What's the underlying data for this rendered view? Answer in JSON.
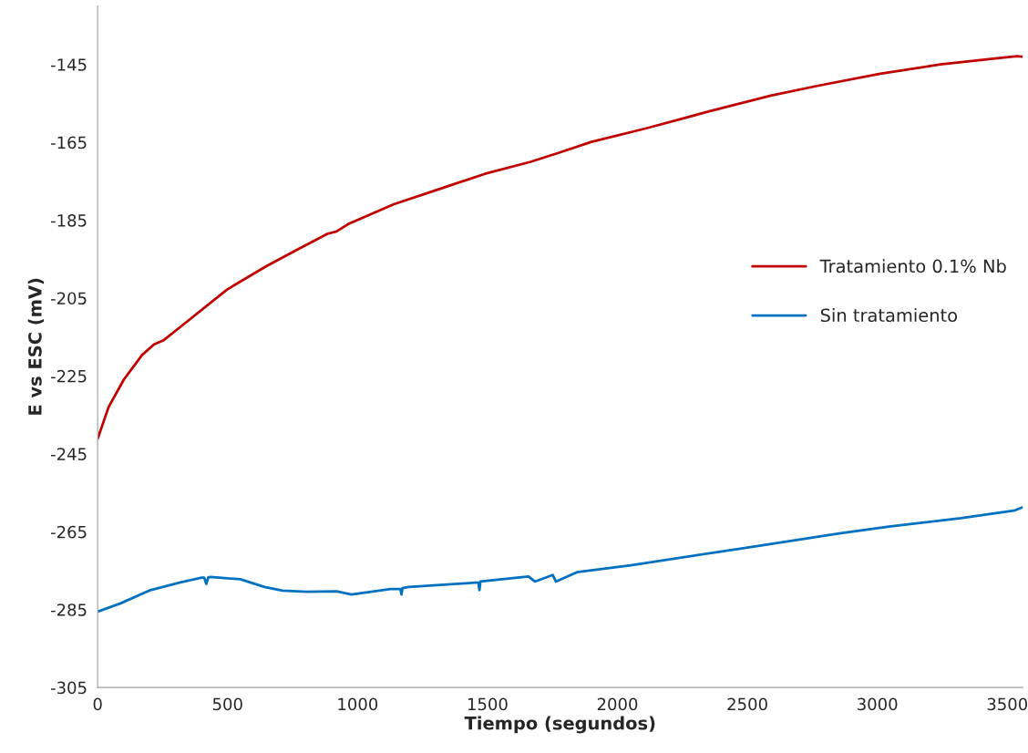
{
  "chart_data": {
    "type": "line",
    "xlabel": "Tiempo (segundos)",
    "ylabel": "E vs ESC (mV)",
    "xlim": [
      0,
      3560
    ],
    "xticks": [
      0,
      500,
      1000,
      1500,
      2000,
      2500,
      3000,
      3500
    ],
    "ylim": [
      -305,
      -130
    ],
    "yticks": [
      -305,
      -285,
      -265,
      -245,
      -225,
      -205,
      -185,
      -165,
      -145
    ],
    "grid": false,
    "legend": "right",
    "marker": "none",
    "line_style": "solid",
    "series": [
      {
        "name": "Tratamiento 0.1% Nb",
        "color": "#c00000",
        "x": [
          0,
          42,
          101,
          171,
          217,
          252,
          322,
          498,
          649,
          767,
          884,
          919,
          964,
          1140,
          1315,
          1490,
          1666,
          1778,
          1900,
          2111,
          2356,
          2590,
          2777,
          3011,
          3243,
          3478,
          3538,
          3556
        ],
        "values": [
          -241.1,
          -233,
          -225.9,
          -219.6,
          -216.9,
          -215.9,
          -212.2,
          -202.8,
          -196.8,
          -192.6,
          -188.5,
          -187.9,
          -186,
          -180.9,
          -177,
          -173.1,
          -170,
          -167.6,
          -164.9,
          -161.4,
          -157,
          -153,
          -150.4,
          -147.4,
          -145,
          -143.3,
          -142.9,
          -143
        ]
      },
      {
        "name": "Sin tratamiento",
        "color": "#0070c0",
        "x": [
          0,
          88,
          203,
          318,
          400,
          410,
          418,
          426,
          434,
          549,
          642,
          711,
          804,
          919,
          977,
          1127,
          1165,
          1169,
          1173,
          1197,
          1451,
          1465,
          1469,
          1473,
          1497,
          1658,
          1682,
          1751,
          1763,
          1844,
          2051,
          2467,
          2860,
          3045,
          3322,
          3530,
          3556
        ],
        "values": [
          -285.5,
          -283.4,
          -280,
          -278,
          -276.8,
          -276.8,
          -278.4,
          -276.7,
          -276.6,
          -277.2,
          -279.2,
          -280.1,
          -280.4,
          -280.3,
          -281.1,
          -279.7,
          -279.7,
          -281.1,
          -279.5,
          -279.2,
          -278.1,
          -278.1,
          -280,
          -277.8,
          -277.6,
          -276.5,
          -277.8,
          -276.1,
          -277.8,
          -275.4,
          -273.6,
          -269.4,
          -265.4,
          -263.7,
          -261.5,
          -259.5,
          -258.8
        ]
      }
    ]
  }
}
